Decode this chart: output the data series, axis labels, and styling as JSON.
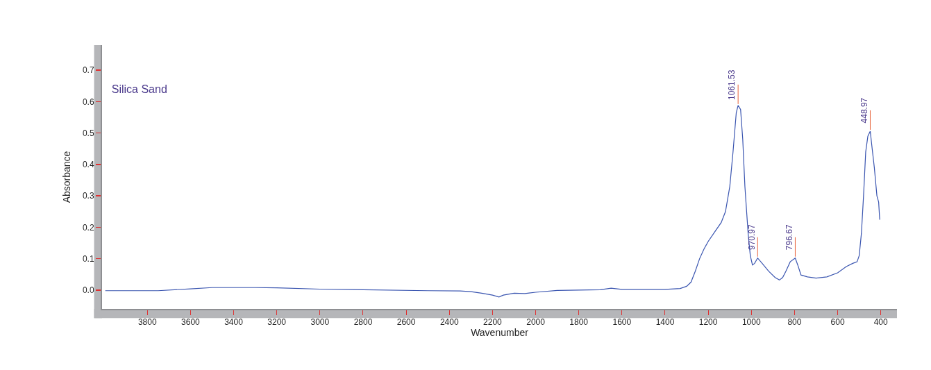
{
  "chart_data": {
    "type": "line",
    "title": "Silica Sand",
    "xlabel": "Wavenumber",
    "ylabel": "Absorbance",
    "x": [
      3995,
      3750,
      3600,
      3500,
      3300,
      3200,
      3000,
      2800,
      2500,
      2350,
      2300,
      2250,
      2200,
      2170,
      2150,
      2100,
      2050,
      2000,
      1900,
      1700,
      1650,
      1600,
      1400,
      1330,
      1300,
      1280,
      1260,
      1240,
      1220,
      1200,
      1170,
      1140,
      1120,
      1100,
      1085,
      1070,
      1061.53,
      1050,
      1040,
      1030,
      1015,
      1005,
      995,
      985,
      970.97,
      950,
      920,
      890,
      870,
      855,
      840,
      820,
      796.67,
      785,
      770,
      740,
      700,
      650,
      600,
      560,
      530,
      510,
      500,
      490,
      480,
      470,
      460,
      448.97,
      440,
      430,
      418,
      410,
      405
    ],
    "series": [
      {
        "color": "#3a55b0",
        "values": [
          -0.002,
          -0.002,
          0.004,
          0.008,
          0.008,
          0.007,
          0.003,
          0.001,
          -0.002,
          -0.003,
          -0.005,
          -0.01,
          -0.016,
          -0.022,
          -0.016,
          -0.01,
          -0.011,
          -0.007,
          -0.001,
          0.001,
          0.006,
          0.002,
          0.002,
          0.005,
          0.012,
          0.025,
          0.06,
          0.1,
          0.13,
          0.155,
          0.185,
          0.215,
          0.25,
          0.33,
          0.44,
          0.565,
          0.588,
          0.575,
          0.48,
          0.33,
          0.18,
          0.11,
          0.08,
          0.085,
          0.102,
          0.085,
          0.06,
          0.04,
          0.032,
          0.04,
          0.06,
          0.09,
          0.102,
          0.08,
          0.048,
          0.042,
          0.038,
          0.042,
          0.055,
          0.075,
          0.085,
          0.09,
          0.11,
          0.18,
          0.3,
          0.44,
          0.49,
          0.506,
          0.45,
          0.39,
          0.3,
          0.28,
          0.224
        ]
      }
    ],
    "annotations": [
      {
        "text": "1061.53",
        "x": 1061.53,
        "y": 0.588
      },
      {
        "text": "970.97",
        "x": 970.97,
        "y": 0.102
      },
      {
        "text": "796.67",
        "x": 796.67,
        "y": 0.102
      },
      {
        "text": "448.97",
        "x": 448.97,
        "y": 0.506
      }
    ],
    "xlim": [
      4010,
      325
    ],
    "xticks": [
      3800,
      3600,
      3400,
      3200,
      3000,
      2800,
      2600,
      2400,
      2200,
      2000,
      1800,
      1600,
      1400,
      1200,
      1000,
      800,
      600,
      400
    ],
    "ylim": [
      -0.06,
      0.78
    ],
    "yticks": [
      {
        "value": 0,
        "label": "0.0"
      },
      0.1,
      0.2,
      0.3,
      0.4,
      0.5,
      0.6,
      0.7
    ],
    "grid": false,
    "marker": "none",
    "line_style": "solid"
  }
}
